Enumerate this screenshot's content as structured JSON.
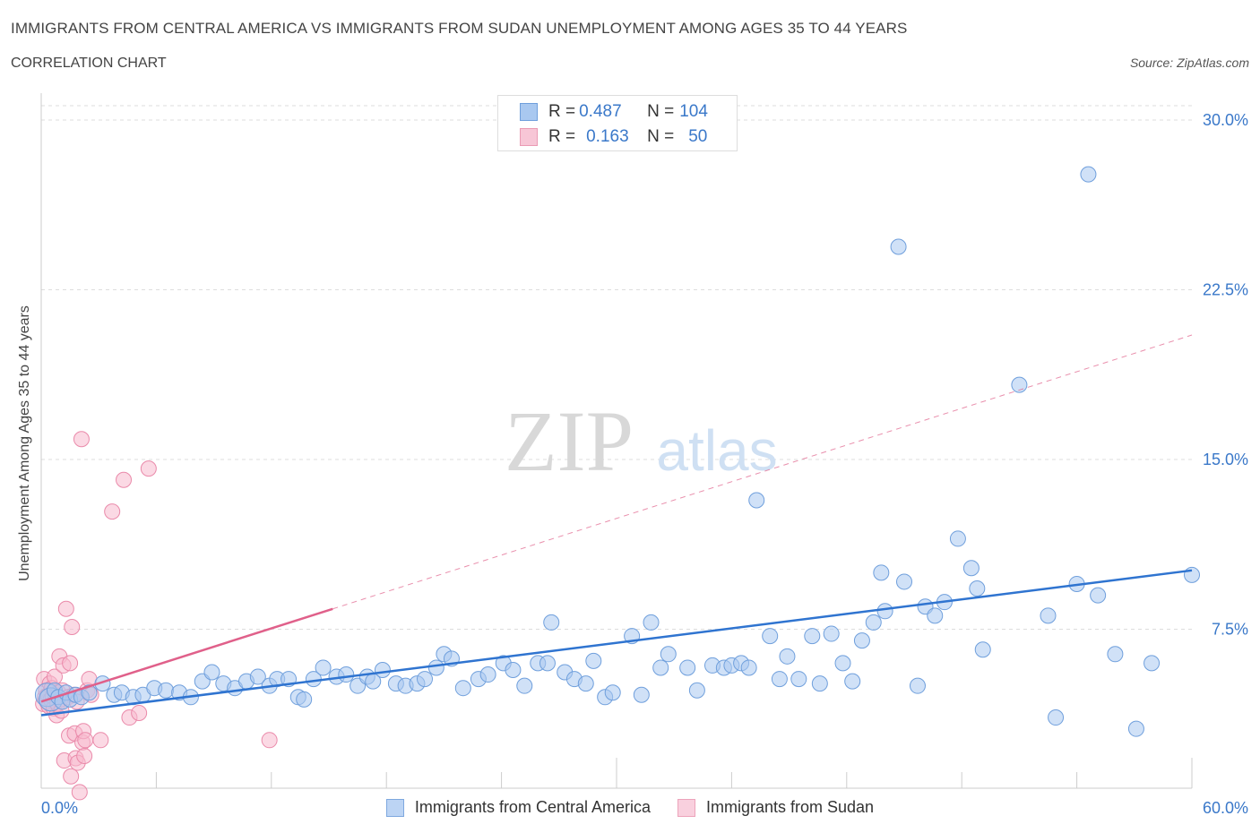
{
  "header": {
    "title": "IMMIGRANTS FROM CENTRAL AMERICA VS IMMIGRANTS FROM SUDAN UNEMPLOYMENT AMONG AGES 35 TO 44 YEARS",
    "subtitle": "CORRELATION CHART",
    "source": "Source: ZipAtlas.com"
  },
  "watermark": {
    "zip": "ZIP",
    "atlas": "atlas"
  },
  "legend_top": {
    "rows": [
      {
        "r_label": "R = ",
        "r_value": "0.487",
        "n_label": "N = ",
        "n_value": "104"
      },
      {
        "r_label": "R = ",
        "r_value": "0.163",
        "n_label": "N = ",
        "n_value": "50"
      }
    ]
  },
  "colors": {
    "central_america_fill": "#a9c8f0",
    "central_america_stroke": "#6f9fdc",
    "central_america_line": "#2f74d0",
    "sudan_fill": "#f7b9cd",
    "sudan_stroke": "#ea8aaa",
    "sudan_line": "#e0608a",
    "axis_text": "#3a78c9",
    "grid": "#dddddd"
  },
  "chart_data": {
    "type": "scatter",
    "title": "IMMIGRANTS FROM CENTRAL AMERICA VS IMMIGRANTS FROM SUDAN UNEMPLOYMENT AMONG AGES 35 TO 44 YEARS",
    "xlabel": "",
    "ylabel": "Unemployment Among Ages 35 to 44 years",
    "xlim": [
      0,
      60
    ],
    "ylim": [
      0,
      30
    ],
    "x_tick_labels": [
      "0.0%",
      "60.0%"
    ],
    "y_ticks": [
      7.5,
      15.0,
      22.5,
      30.0
    ],
    "y_tick_labels": [
      "7.5%",
      "15.0%",
      "22.5%",
      "30.0%"
    ],
    "grid": true,
    "legend_position": "bottom",
    "series": [
      {
        "name": "Immigrants from Central America",
        "R": 0.487,
        "N": 104,
        "trend": {
          "x": [
            0,
            60
          ],
          "y": [
            3.7,
            10.1
          ],
          "extrapolated": false
        },
        "points": [
          [
            0.3,
            4.6
          ],
          [
            0.5,
            4.4
          ],
          [
            0.7,
            4.8
          ],
          [
            0.9,
            4.5
          ],
          [
            1.1,
            4.3
          ],
          [
            1.3,
            4.7
          ],
          [
            1.5,
            4.4
          ],
          [
            1.8,
            4.6
          ],
          [
            2.1,
            4.5
          ],
          [
            2.5,
            4.7
          ],
          [
            3.2,
            5.1
          ],
          [
            3.8,
            4.6
          ],
          [
            4.2,
            4.7
          ],
          [
            4.8,
            4.5
          ],
          [
            5.3,
            4.6
          ],
          [
            5.9,
            4.9
          ],
          [
            6.5,
            4.8
          ],
          [
            7.2,
            4.7
          ],
          [
            7.8,
            4.5
          ],
          [
            8.4,
            5.2
          ],
          [
            8.9,
            5.6
          ],
          [
            9.5,
            5.1
          ],
          [
            10.1,
            4.9
          ],
          [
            10.7,
            5.2
          ],
          [
            11.3,
            5.4
          ],
          [
            11.9,
            5.0
          ],
          [
            12.3,
            5.3
          ],
          [
            12.9,
            5.3
          ],
          [
            13.4,
            4.5
          ],
          [
            13.7,
            4.4
          ],
          [
            14.2,
            5.3
          ],
          [
            14.7,
            5.8
          ],
          [
            15.4,
            5.4
          ],
          [
            15.9,
            5.5
          ],
          [
            16.5,
            5.0
          ],
          [
            17.0,
            5.4
          ],
          [
            17.3,
            5.2
          ],
          [
            17.8,
            5.7
          ],
          [
            18.5,
            5.1
          ],
          [
            19.0,
            5.0
          ],
          [
            19.6,
            5.1
          ],
          [
            20.0,
            5.3
          ],
          [
            20.6,
            5.8
          ],
          [
            21.0,
            6.4
          ],
          [
            21.4,
            6.2
          ],
          [
            22.0,
            4.9
          ],
          [
            22.8,
            5.3
          ],
          [
            23.3,
            5.5
          ],
          [
            24.1,
            6.0
          ],
          [
            24.6,
            5.7
          ],
          [
            25.2,
            5.0
          ],
          [
            25.9,
            6.0
          ],
          [
            26.4,
            6.0
          ],
          [
            26.6,
            7.8
          ],
          [
            27.3,
            5.6
          ],
          [
            27.8,
            5.3
          ],
          [
            28.4,
            5.1
          ],
          [
            28.8,
            6.1
          ],
          [
            29.4,
            4.5
          ],
          [
            29.8,
            4.7
          ],
          [
            30.8,
            7.2
          ],
          [
            31.3,
            4.6
          ],
          [
            31.8,
            7.8
          ],
          [
            32.3,
            5.8
          ],
          [
            32.7,
            6.4
          ],
          [
            33.7,
            5.8
          ],
          [
            34.2,
            4.8
          ],
          [
            35.0,
            5.9
          ],
          [
            35.6,
            5.8
          ],
          [
            36.0,
            5.9
          ],
          [
            36.5,
            6.0
          ],
          [
            36.9,
            5.8
          ],
          [
            37.3,
            13.2
          ],
          [
            38.0,
            7.2
          ],
          [
            38.5,
            5.3
          ],
          [
            38.9,
            6.3
          ],
          [
            39.5,
            5.3
          ],
          [
            40.2,
            7.2
          ],
          [
            40.6,
            5.1
          ],
          [
            41.2,
            7.3
          ],
          [
            41.8,
            6.0
          ],
          [
            42.3,
            5.2
          ],
          [
            42.8,
            7.0
          ],
          [
            43.4,
            7.8
          ],
          [
            43.8,
            10.0
          ],
          [
            44.0,
            8.3
          ],
          [
            44.7,
            24.4
          ],
          [
            45.0,
            9.6
          ],
          [
            45.7,
            5.0
          ],
          [
            46.1,
            8.5
          ],
          [
            46.6,
            8.1
          ],
          [
            47.1,
            8.7
          ],
          [
            47.8,
            11.5
          ],
          [
            48.5,
            10.2
          ],
          [
            48.8,
            9.3
          ],
          [
            49.1,
            6.6
          ],
          [
            51.0,
            18.3
          ],
          [
            52.5,
            8.1
          ],
          [
            52.9,
            3.6
          ],
          [
            54.0,
            9.5
          ],
          [
            54.6,
            27.6
          ],
          [
            55.1,
            9.0
          ],
          [
            56.0,
            6.4
          ],
          [
            57.1,
            3.1
          ],
          [
            57.9,
            6.0
          ],
          [
            60.0,
            9.9
          ]
        ]
      },
      {
        "name": "Immigrants from Sudan",
        "R": 0.163,
        "N": 50,
        "trend": {
          "x": [
            0,
            15.2
          ],
          "y": [
            4.3,
            8.4
          ],
          "extrapolated_to": [
            60,
            20.5
          ]
        },
        "points": [
          [
            0.1,
            4.2
          ],
          [
            0.15,
            5.3
          ],
          [
            0.2,
            4.5
          ],
          [
            0.25,
            4.8
          ],
          [
            0.3,
            4.3
          ],
          [
            0.35,
            4.6
          ],
          [
            0.4,
            4.1
          ],
          [
            0.45,
            5.1
          ],
          [
            0.5,
            4.4
          ],
          [
            0.55,
            4.9
          ],
          [
            0.6,
            4.5
          ],
          [
            0.65,
            4.0
          ],
          [
            0.7,
            5.4
          ],
          [
            0.75,
            4.6
          ],
          [
            0.8,
            3.7
          ],
          [
            0.85,
            4.2
          ],
          [
            0.9,
            4.7
          ],
          [
            0.95,
            6.3
          ],
          [
            1.0,
            4.4
          ],
          [
            1.05,
            3.9
          ],
          [
            1.1,
            4.8
          ],
          [
            1.15,
            5.9
          ],
          [
            1.2,
            1.7
          ],
          [
            1.3,
            8.4
          ],
          [
            1.4,
            4.5
          ],
          [
            1.45,
            2.8
          ],
          [
            1.5,
            6.0
          ],
          [
            1.55,
            1.0
          ],
          [
            1.6,
            7.6
          ],
          [
            1.7,
            4.6
          ],
          [
            1.75,
            2.9
          ],
          [
            1.8,
            1.8
          ],
          [
            1.85,
            4.3
          ],
          [
            1.9,
            1.6
          ],
          [
            2.0,
            0.3
          ],
          [
            2.1,
            15.9
          ],
          [
            2.15,
            2.5
          ],
          [
            2.2,
            3.0
          ],
          [
            2.25,
            1.9
          ],
          [
            2.3,
            2.6
          ],
          [
            2.4,
            4.8
          ],
          [
            2.5,
            5.3
          ],
          [
            2.6,
            4.6
          ],
          [
            3.1,
            2.6
          ],
          [
            3.7,
            12.7
          ],
          [
            4.3,
            14.1
          ],
          [
            4.6,
            3.6
          ],
          [
            5.1,
            3.8
          ],
          [
            5.6,
            14.6
          ],
          [
            11.9,
            2.6
          ]
        ]
      }
    ]
  },
  "legend_bottom": {
    "items": [
      {
        "label": "Immigrants from Central America"
      },
      {
        "label": "Immigrants from Sudan"
      }
    ]
  }
}
